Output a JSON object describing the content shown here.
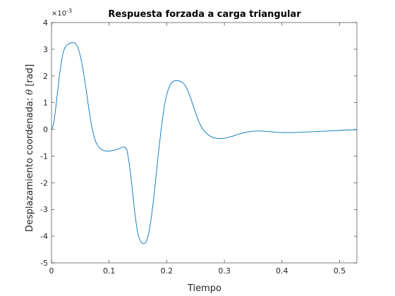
{
  "chart_data": {
    "type": "line",
    "title": "Respuesta forzada a carga triangular",
    "xlabel": "Tiempo",
    "ylabel_prefix": "Desplazamiento coordenada: ",
    "ylabel_symbol": "θ",
    "ylabel_suffix": " [rad]",
    "y_exponent_base": "×10",
    "y_exponent_power": "-3",
    "xlim": [
      0,
      0.53
    ],
    "ylim": [
      -5,
      4
    ],
    "y_scale_factor": 0.001,
    "xticks": [
      0,
      0.1,
      0.2,
      0.3,
      0.4,
      0.5
    ],
    "xtick_labels": [
      "0",
      "0.1",
      "0.2",
      "0.3",
      "0.4",
      "0.5"
    ],
    "yticks": [
      -5,
      -4,
      -3,
      -2,
      -1,
      0,
      1,
      2,
      3,
      4
    ],
    "ytick_labels": [
      "-5",
      "-4",
      "-3",
      "-2",
      "-1",
      "0",
      "1",
      "2",
      "3",
      "4"
    ],
    "grid": false,
    "line_color": "#0072BD",
    "series": [
      {
        "x": [
          0,
          0.003,
          0.006,
          0.01,
          0.015,
          0.02,
          0.025,
          0.03,
          0.035,
          0.04,
          0.045,
          0.05,
          0.055,
          0.06,
          0.065,
          0.07,
          0.075,
          0.08,
          0.085,
          0.09,
          0.095,
          0.1,
          0.105,
          0.11,
          0.115,
          0.12,
          0.125,
          0.128,
          0.131,
          0.135,
          0.14,
          0.145,
          0.15,
          0.155,
          0.16,
          0.165,
          0.17,
          0.175,
          0.18,
          0.185,
          0.19,
          0.195,
          0.2,
          0.205,
          0.21,
          0.215,
          0.22,
          0.225,
          0.23,
          0.235,
          0.24,
          0.245,
          0.25,
          0.255,
          0.26,
          0.265,
          0.27,
          0.275,
          0.28,
          0.285,
          0.29,
          0.295,
          0.3,
          0.305,
          0.31,
          0.315,
          0.32,
          0.33,
          0.34,
          0.35,
          0.36,
          0.37,
          0.38,
          0.39,
          0.4,
          0.41,
          0.42,
          0.43,
          0.44,
          0.45,
          0.46,
          0.47,
          0.48,
          0.49,
          0.5,
          0.51,
          0.52,
          0.53
        ],
        "y": [
          0,
          0.15,
          0.55,
          1.3,
          2.2,
          2.85,
          3.12,
          3.2,
          3.25,
          3.24,
          3.1,
          2.75,
          2.2,
          1.5,
          0.75,
          0.1,
          -0.35,
          -0.6,
          -0.73,
          -0.79,
          -0.81,
          -0.81,
          -0.8,
          -0.78,
          -0.74,
          -0.7,
          -0.66,
          -0.68,
          -0.8,
          -1.3,
          -2.2,
          -3.2,
          -3.9,
          -4.2,
          -4.28,
          -4.18,
          -3.75,
          -3.0,
          -2.05,
          -1.0,
          -0.05,
          0.75,
          1.3,
          1.62,
          1.78,
          1.82,
          1.82,
          1.78,
          1.7,
          1.52,
          1.25,
          0.95,
          0.62,
          0.33,
          0.1,
          -0.06,
          -0.17,
          -0.25,
          -0.3,
          -0.33,
          -0.34,
          -0.34,
          -0.33,
          -0.31,
          -0.28,
          -0.25,
          -0.21,
          -0.15,
          -0.1,
          -0.07,
          -0.06,
          -0.07,
          -0.09,
          -0.11,
          -0.12,
          -0.12,
          -0.12,
          -0.11,
          -0.1,
          -0.09,
          -0.08,
          -0.07,
          -0.06,
          -0.05,
          -0.04,
          -0.03,
          -0.02,
          -0.01
        ]
      }
    ]
  }
}
